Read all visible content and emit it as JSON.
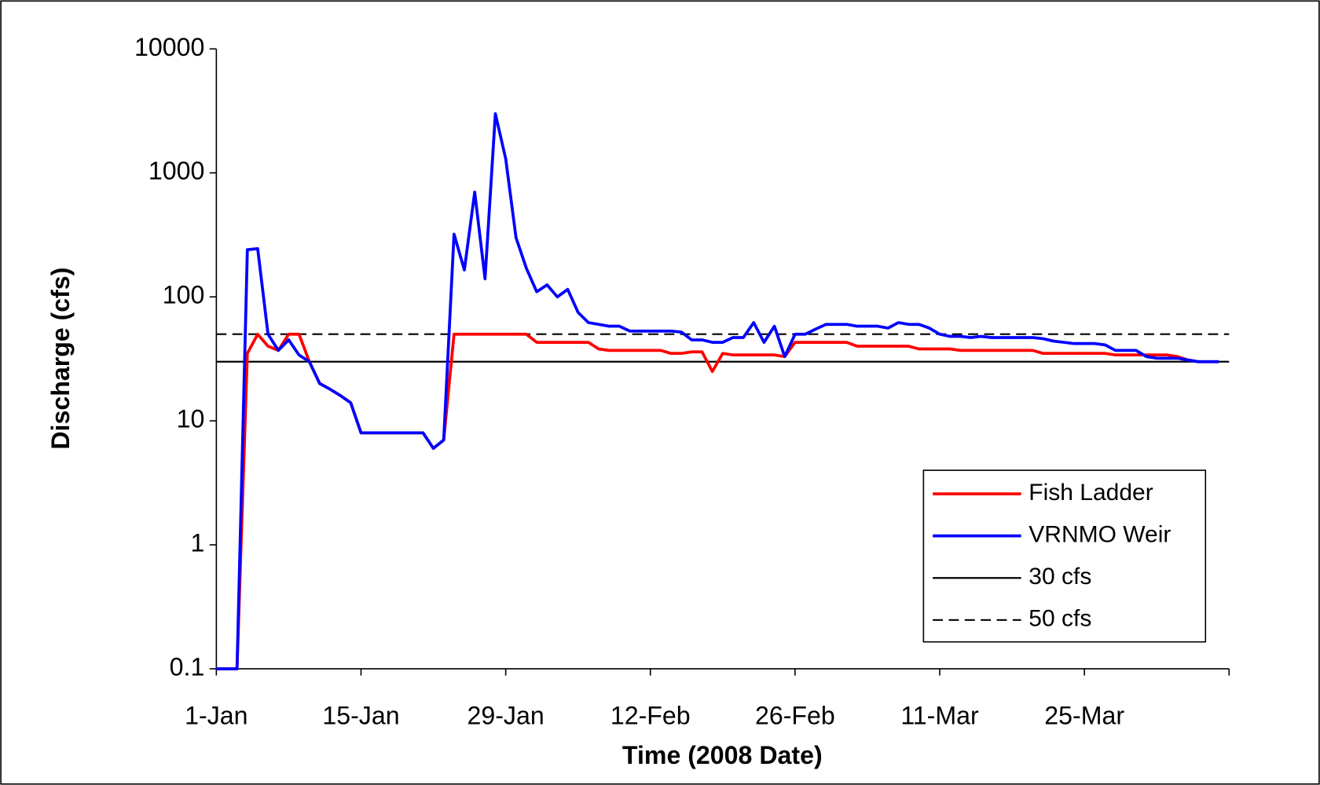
{
  "chart_data": {
    "type": "line",
    "x_label": "Time (2008 Date)",
    "y_label": "Discharge (cfs)",
    "yscale": "log",
    "ylim": [
      0.1,
      10000
    ],
    "yticks": [
      0.1,
      1,
      10,
      100,
      1000,
      10000
    ],
    "xlim": [
      "2008-01-01",
      "2008-04-08"
    ],
    "xticks": [
      {
        "value": "2008-01-01",
        "label": "1-Jan"
      },
      {
        "value": "2008-01-15",
        "label": "15-Jan"
      },
      {
        "value": "2008-01-29",
        "label": "29-Jan"
      },
      {
        "value": "2008-02-12",
        "label": "12-Feb"
      },
      {
        "value": "2008-02-26",
        "label": "26-Feb"
      },
      {
        "value": "2008-03-11",
        "label": "11-Mar"
      },
      {
        "value": "2008-03-25",
        "label": "25-Mar"
      }
    ],
    "grid": false,
    "legend_position": "lower right",
    "x": [
      "2008-01-01",
      "2008-01-02",
      "2008-01-03",
      "2008-01-04",
      "2008-01-05",
      "2008-01-06",
      "2008-01-07",
      "2008-01-08",
      "2008-01-09",
      "2008-01-10",
      "2008-01-11",
      "2008-01-12",
      "2008-01-13",
      "2008-01-14",
      "2008-01-15",
      "2008-01-16",
      "2008-01-17",
      "2008-01-18",
      "2008-01-19",
      "2008-01-20",
      "2008-01-21",
      "2008-01-22",
      "2008-01-23",
      "2008-01-24",
      "2008-01-25",
      "2008-01-26",
      "2008-01-27",
      "2008-01-28",
      "2008-01-29",
      "2008-01-30",
      "2008-01-31",
      "2008-02-01",
      "2008-02-02",
      "2008-02-03",
      "2008-02-04",
      "2008-02-05",
      "2008-02-06",
      "2008-02-07",
      "2008-02-08",
      "2008-02-09",
      "2008-02-10",
      "2008-02-11",
      "2008-02-12",
      "2008-02-13",
      "2008-02-14",
      "2008-02-15",
      "2008-02-16",
      "2008-02-17",
      "2008-02-18",
      "2008-02-19",
      "2008-02-20",
      "2008-02-21",
      "2008-02-22",
      "2008-02-23",
      "2008-02-24",
      "2008-02-25",
      "2008-02-26",
      "2008-02-27",
      "2008-02-28",
      "2008-02-29",
      "2008-03-01",
      "2008-03-02",
      "2008-03-03",
      "2008-03-04",
      "2008-03-05",
      "2008-03-06",
      "2008-03-07",
      "2008-03-08",
      "2008-03-09",
      "2008-03-10",
      "2008-03-11",
      "2008-03-12",
      "2008-03-13",
      "2008-03-14",
      "2008-03-15",
      "2008-03-16",
      "2008-03-17",
      "2008-03-18",
      "2008-03-19",
      "2008-03-20",
      "2008-03-21",
      "2008-03-22",
      "2008-03-23",
      "2008-03-24",
      "2008-03-25",
      "2008-03-26",
      "2008-03-27",
      "2008-03-28",
      "2008-03-29",
      "2008-03-30",
      "2008-03-31",
      "2008-04-01",
      "2008-04-02",
      "2008-04-03",
      "2008-04-04",
      "2008-04-05",
      "2008-04-06",
      "2008-04-07"
    ],
    "series": [
      {
        "name": "Fish Ladder",
        "color": "#ff0000",
        "values": [
          0.1,
          0.1,
          0.1,
          35,
          50,
          40,
          37,
          50,
          50,
          30,
          20,
          18,
          16,
          14,
          8,
          8,
          8,
          8,
          8,
          8,
          8,
          6,
          7,
          50,
          50,
          50,
          50,
          50,
          50,
          50,
          50,
          43,
          43,
          43,
          43,
          43,
          43,
          38,
          37,
          37,
          37,
          37,
          37,
          37,
          35,
          35,
          36,
          36,
          25,
          35,
          34,
          34,
          34,
          34,
          34,
          33,
          43,
          43,
          43,
          43,
          43,
          43,
          40,
          40,
          40,
          40,
          40,
          40,
          38,
          38,
          38,
          38,
          37,
          37,
          37,
          37,
          37,
          37,
          37,
          37,
          35,
          35,
          35,
          35,
          35,
          35,
          35,
          34,
          34,
          34,
          34,
          34,
          34,
          33,
          31,
          30,
          30,
          30
        ]
      },
      {
        "name": "VRNMO Weir",
        "color": "#0000ff",
        "values": [
          0.1,
          0.1,
          0.1,
          240,
          245,
          50,
          37,
          45,
          34,
          30,
          20,
          18,
          16,
          14,
          8,
          8,
          8,
          8,
          8,
          8,
          8,
          6,
          7,
          320,
          165,
          700,
          140,
          3000,
          1300,
          300,
          170,
          110,
          125,
          100,
          115,
          75,
          62,
          60,
          58,
          58,
          53,
          53,
          53,
          53,
          53,
          52,
          45,
          45,
          43,
          43,
          47,
          47,
          62,
          43,
          58,
          33,
          50,
          50,
          55,
          60,
          60,
          60,
          58,
          58,
          58,
          56,
          62,
          60,
          60,
          56,
          50,
          48,
          48,
          47,
          48,
          47,
          47,
          47,
          47,
          47,
          46,
          44,
          43,
          42,
          42,
          42,
          41,
          37,
          37,
          37,
          33,
          32,
          32,
          32,
          31,
          30,
          30,
          30
        ]
      }
    ],
    "reference_lines": [
      {
        "name": "30 cfs",
        "value": 30,
        "color": "#000000",
        "dash": "solid"
      },
      {
        "name": "50 cfs",
        "value": 50,
        "color": "#000000",
        "dash": "dashed"
      }
    ]
  }
}
